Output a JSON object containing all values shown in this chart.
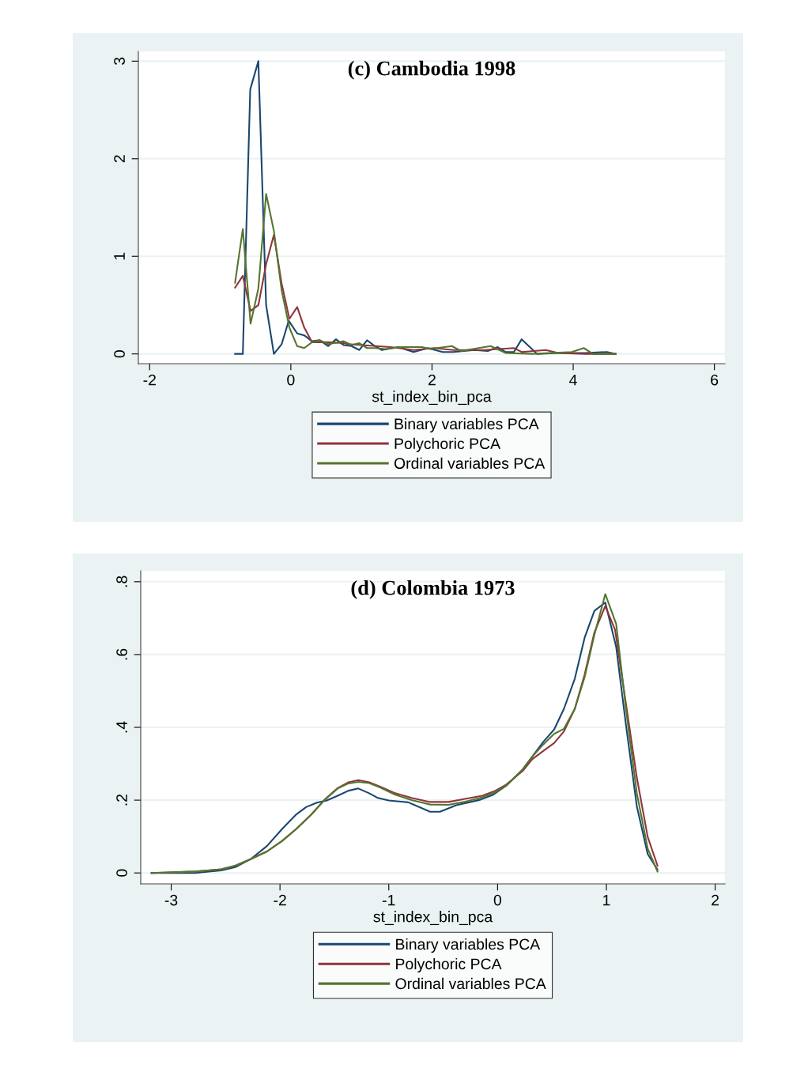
{
  "chart_data": [
    {
      "type": "line",
      "title": "(c) Cambodia 1998",
      "xlabel": "st_index_bin_pca",
      "xlim": [
        -2.16,
        6.15
      ],
      "ylim": [
        -0.1,
        3.1
      ],
      "xticks": [
        -2,
        0,
        2,
        4,
        6
      ],
      "yticks": [
        0,
        1,
        2,
        3
      ],
      "grid": "y",
      "legend": "bottom",
      "series": [
        {
          "name": "Binary variables PCA",
          "color": "#1a476f",
          "x": [
            -0.79,
            -0.68,
            -0.575,
            -0.46,
            -0.35,
            -0.24,
            -0.13,
            -0.03,
            0.09,
            0.19,
            0.3,
            0.41,
            0.53,
            0.64,
            0.75,
            0.86,
            0.97,
            1.08,
            1.19,
            1.29,
            1.52,
            1.74,
            1.94,
            2.15,
            2.3,
            2.6,
            2.79,
            2.93,
            3.04,
            3.16,
            3.27,
            3.49,
            3.79,
            4.17,
            4.48,
            4.6
          ],
          "values": [
            0,
            0,
            2.71,
            3.0,
            0.5,
            0,
            0.1,
            0.34,
            0.21,
            0.19,
            0.13,
            0.14,
            0.08,
            0.15,
            0.09,
            0.08,
            0.04,
            0.14,
            0.08,
            0.04,
            0.07,
            0.02,
            0.06,
            0.02,
            0.02,
            0.04,
            0.03,
            0.07,
            0.02,
            0.02,
            0.15,
            0,
            0.01,
            0.01,
            0.02,
            0
          ]
        },
        {
          "name": "Polychoric PCA",
          "color": "#90353b",
          "x": [
            -0.79,
            -0.68,
            -0.57,
            -0.46,
            -0.35,
            -0.24,
            -0.13,
            -0.02,
            0.09,
            0.19,
            0.3,
            0.53,
            0.75,
            0.81,
            1.41,
            1.74,
            2.03,
            2.3,
            2.74,
            3.16,
            3.27,
            3.61,
            3.79,
            4.17,
            4.6
          ],
          "values": [
            0.68,
            0.8,
            0.44,
            0.5,
            0.92,
            1.22,
            0.72,
            0.36,
            0.48,
            0.27,
            0.12,
            0.12,
            0.11,
            0.1,
            0.07,
            0.04,
            0.06,
            0.04,
            0.04,
            0.06,
            0.02,
            0.04,
            0.01,
            0,
            0
          ]
        },
        {
          "name": "Ordinal variables PCA",
          "color": "#55752f",
          "x": [
            -0.79,
            -0.68,
            -0.57,
            -0.46,
            -0.35,
            -0.24,
            -0.13,
            -0.02,
            0.09,
            0.19,
            0.3,
            0.41,
            0.53,
            0.75,
            0.86,
            0.97,
            1.08,
            1.19,
            1.34,
            1.56,
            1.86,
            1.97,
            2.28,
            2.41,
            2.83,
            3.04,
            3.42,
            3.98,
            4.15,
            4.28,
            4.6
          ],
          "values": [
            0.73,
            1.28,
            0.31,
            0.67,
            1.64,
            1.26,
            0.65,
            0.27,
            0.08,
            0.06,
            0.12,
            0.14,
            0.1,
            0.13,
            0.09,
            0.11,
            0.06,
            0.06,
            0.05,
            0.07,
            0.07,
            0.05,
            0.08,
            0.03,
            0.08,
            0.01,
            0,
            0.02,
            0.06,
            0,
            0
          ]
        }
      ]
    },
    {
      "type": "line",
      "title": "(d) Colombia 1973",
      "xlabel": "st_index_bin_pca",
      "xlim": [
        -3.28,
        2.09
      ],
      "ylim": [
        -0.03,
        0.83
      ],
      "xticks": [
        -3,
        -2,
        -1,
        0,
        1,
        2
      ],
      "yticks": [
        0,
        {
          "value": 0.2,
          "label": ".2"
        },
        {
          "value": 0.4,
          "label": ".4"
        },
        {
          "value": 0.6,
          "label": ".6"
        },
        {
          "value": 0.8,
          "label": ".8"
        }
      ],
      "grid": "y",
      "legend": "bottom",
      "series": [
        {
          "name": "Binary variables PCA",
          "color": "#1a476f",
          "x": [
            -3.18,
            -2.78,
            -2.54,
            -2.41,
            -2.27,
            -2.12,
            -1.98,
            -1.85,
            -1.76,
            -1.66,
            -1.57,
            -1.47,
            -1.37,
            -1.28,
            -1.18,
            -1.1,
            -1.0,
            -0.82,
            -0.62,
            -0.53,
            -0.38,
            -0.16,
            -0.04,
            0.08,
            0.23,
            0.32,
            0.42,
            0.52,
            0.61,
            0.71,
            0.8,
            0.89,
            0.99,
            1.09,
            1.18,
            1.28,
            1.38,
            1.47
          ],
          "values": [
            0,
            0,
            0.007,
            0.016,
            0.038,
            0.074,
            0.121,
            0.161,
            0.181,
            0.193,
            0.199,
            0.212,
            0.226,
            0.232,
            0.219,
            0.206,
            0.199,
            0.194,
            0.168,
            0.168,
            0.186,
            0.201,
            0.215,
            0.24,
            0.284,
            0.32,
            0.36,
            0.394,
            0.451,
            0.534,
            0.646,
            0.72,
            0.743,
            0.621,
            0.407,
            0.183,
            0.052,
            0.009
          ]
        },
        {
          "name": "Polychoric PCA",
          "color": "#90353b",
          "x": [
            -3.18,
            -2.78,
            -2.54,
            -2.41,
            -2.27,
            -2.12,
            -1.98,
            -1.85,
            -1.71,
            -1.59,
            -1.47,
            -1.37,
            -1.28,
            -1.18,
            -1.08,
            -0.94,
            -0.79,
            -0.62,
            -0.45,
            -0.31,
            -0.14,
            -0.02,
            0.08,
            0.23,
            0.32,
            0.42,
            0.52,
            0.61,
            0.71,
            0.8,
            0.89,
            0.99,
            1.08,
            1.18,
            1.28,
            1.38,
            1.47
          ],
          "values": [
            0,
            0.004,
            0.01,
            0.02,
            0.038,
            0.059,
            0.088,
            0.121,
            0.161,
            0.201,
            0.233,
            0.249,
            0.255,
            0.249,
            0.237,
            0.219,
            0.206,
            0.195,
            0.195,
            0.203,
            0.212,
            0.226,
            0.243,
            0.28,
            0.313,
            0.335,
            0.357,
            0.389,
            0.451,
            0.545,
            0.661,
            0.733,
            0.668,
            0.465,
            0.262,
            0.099,
            0.02
          ]
        },
        {
          "name": "Ordinal variables PCA",
          "color": "#55752f",
          "x": [
            -3.18,
            -2.78,
            -2.54,
            -2.41,
            -2.27,
            -2.12,
            -1.98,
            -1.85,
            -1.71,
            -1.59,
            -1.47,
            -1.37,
            -1.28,
            -1.18,
            -1.08,
            -0.94,
            -0.79,
            -0.62,
            -0.45,
            -0.31,
            -0.14,
            -0.02,
            0.08,
            0.23,
            0.32,
            0.42,
            0.52,
            0.61,
            0.71,
            0.8,
            0.89,
            0.99,
            1.09,
            1.18,
            1.28,
            1.38,
            1.47
          ],
          "values": [
            0,
            0.004,
            0.01,
            0.02,
            0.038,
            0.059,
            0.088,
            0.121,
            0.161,
            0.201,
            0.232,
            0.246,
            0.25,
            0.247,
            0.235,
            0.215,
            0.2,
            0.188,
            0.187,
            0.195,
            0.208,
            0.222,
            0.24,
            0.284,
            0.32,
            0.353,
            0.382,
            0.396,
            0.451,
            0.538,
            0.654,
            0.766,
            0.684,
            0.451,
            0.219,
            0.067,
            0.004
          ]
        }
      ]
    }
  ]
}
